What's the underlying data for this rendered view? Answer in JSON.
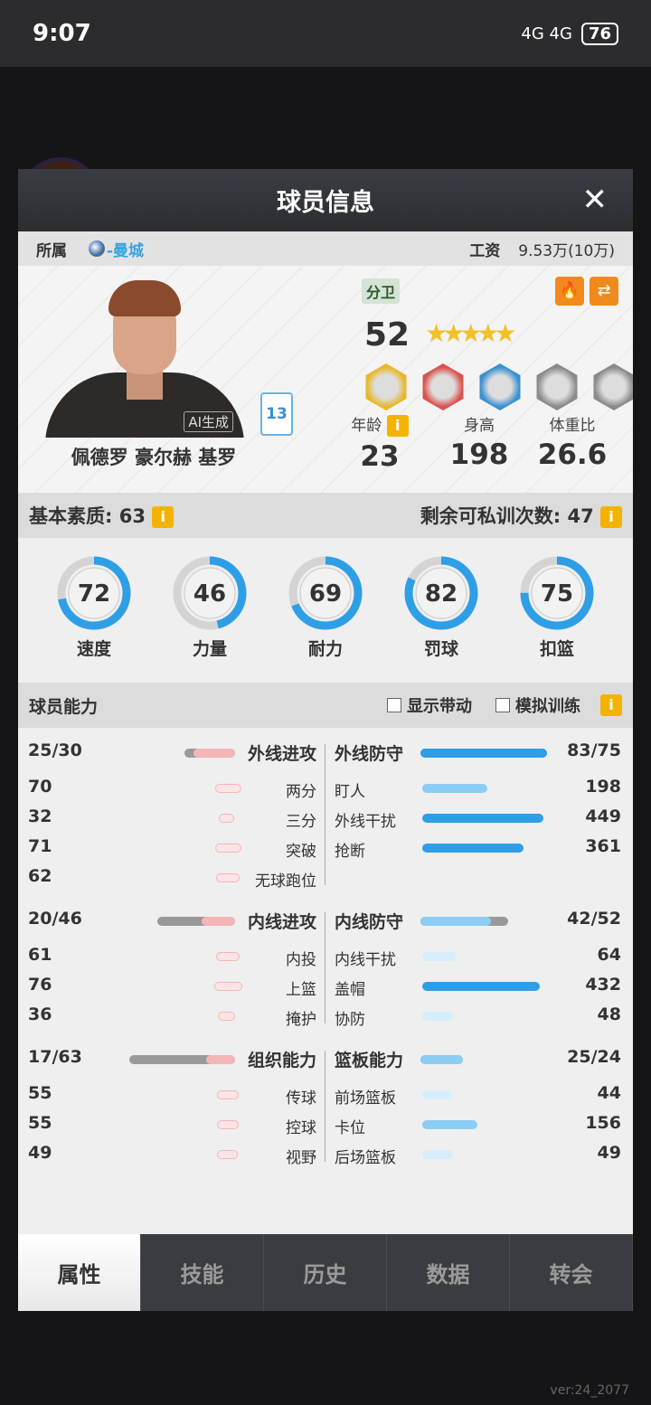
{
  "status_bar": {
    "time": "9:07",
    "battery": "76",
    "network": "4G 4G"
  },
  "modal": {
    "title": "球员信息"
  },
  "team_row": {
    "label": "所属",
    "team": "-曼城",
    "wage_label": "工资",
    "wage": "9.53万(10万)"
  },
  "player": {
    "name": "佩德罗 豪尔赫 基罗",
    "position": "分卫",
    "rating": "52",
    "stars": "★★★★★",
    "star_level": 5.5,
    "jersey": "13",
    "ai_tag": "AI生成",
    "age_label": "年龄",
    "age": "23",
    "height_label": "身高",
    "height": "198",
    "ratio_label": "体重比",
    "ratio": "26.6",
    "badges": [
      {
        "name": "gold-badge",
        "color": "#e8b82a"
      },
      {
        "name": "red-badge",
        "color": "#d9534f"
      },
      {
        "name": "blue-badge",
        "color": "#3a90d0"
      },
      {
        "name": "empty-badge",
        "color": "#8a8a8a"
      },
      {
        "name": "empty-badge",
        "color": "#8a8a8a"
      }
    ]
  },
  "basic": {
    "label": "基本素质: 63",
    "train_label": "剩余可私训次数: 47",
    "info": "i"
  },
  "rings": [
    {
      "label": "速度",
      "value": 72
    },
    {
      "label": "力量",
      "value": 46
    },
    {
      "label": "耐力",
      "value": 69
    },
    {
      "label": "罚球",
      "value": 82
    },
    {
      "label": "扣篮",
      "value": 75
    }
  ],
  "ability": {
    "title": "球员能力",
    "show_label": "显示带动",
    "sim_label": "模拟训练",
    "info": "i"
  },
  "groups": [
    {
      "left": {
        "label": "外线进攻",
        "value": "25/30",
        "cur": 25,
        "max": 30
      },
      "right": {
        "label": "外线防守",
        "value": "83/75",
        "cur": 83,
        "max": 75
      },
      "left_items": [
        {
          "label": "两分",
          "value": 70
        },
        {
          "label": "三分",
          "value": 32
        },
        {
          "label": "突破",
          "value": 71
        },
        {
          "label": "无球跑位",
          "value": 62
        }
      ],
      "right_items": [
        {
          "label": "盯人",
          "value": 198
        },
        {
          "label": "外线干扰",
          "value": 449
        },
        {
          "label": "抢断",
          "value": 361
        }
      ]
    },
    {
      "left": {
        "label": "内线进攻",
        "value": "20/46",
        "cur": 20,
        "max": 46
      },
      "right": {
        "label": "内线防守",
        "value": "42/52",
        "cur": 42,
        "max": 52
      },
      "left_items": [
        {
          "label": "内投",
          "value": 61
        },
        {
          "label": "上篮",
          "value": 76
        },
        {
          "label": "掩护",
          "value": 36
        }
      ],
      "right_items": [
        {
          "label": "内线干扰",
          "value": 64
        },
        {
          "label": "盖帽",
          "value": 432
        },
        {
          "label": "协防",
          "value": 48
        }
      ]
    },
    {
      "left": {
        "label": "组织能力",
        "value": "17/63",
        "cur": 17,
        "max": 63
      },
      "right": {
        "label": "篮板能力",
        "value": "25/24",
        "cur": 25,
        "max": 24
      },
      "left_items": [
        {
          "label": "传球",
          "value": 55
        },
        {
          "label": "控球",
          "value": 55
        },
        {
          "label": "视野",
          "value": 49
        }
      ],
      "right_items": [
        {
          "label": "前场篮板",
          "value": 44
        },
        {
          "label": "卡位",
          "value": 156
        },
        {
          "label": "后场篮板",
          "value": 49
        }
      ]
    }
  ],
  "tabs": [
    "属性",
    "技能",
    "历史",
    "数据",
    "转会"
  ],
  "active_tab": 0,
  "version": "ver:24_2077",
  "colors": {
    "accent_blue": "#2e9fe6",
    "light_blue": "#8ccdf3",
    "pink": "#f5b5b8",
    "orange": "#f08a1c",
    "info_yellow": "#f5b301"
  }
}
